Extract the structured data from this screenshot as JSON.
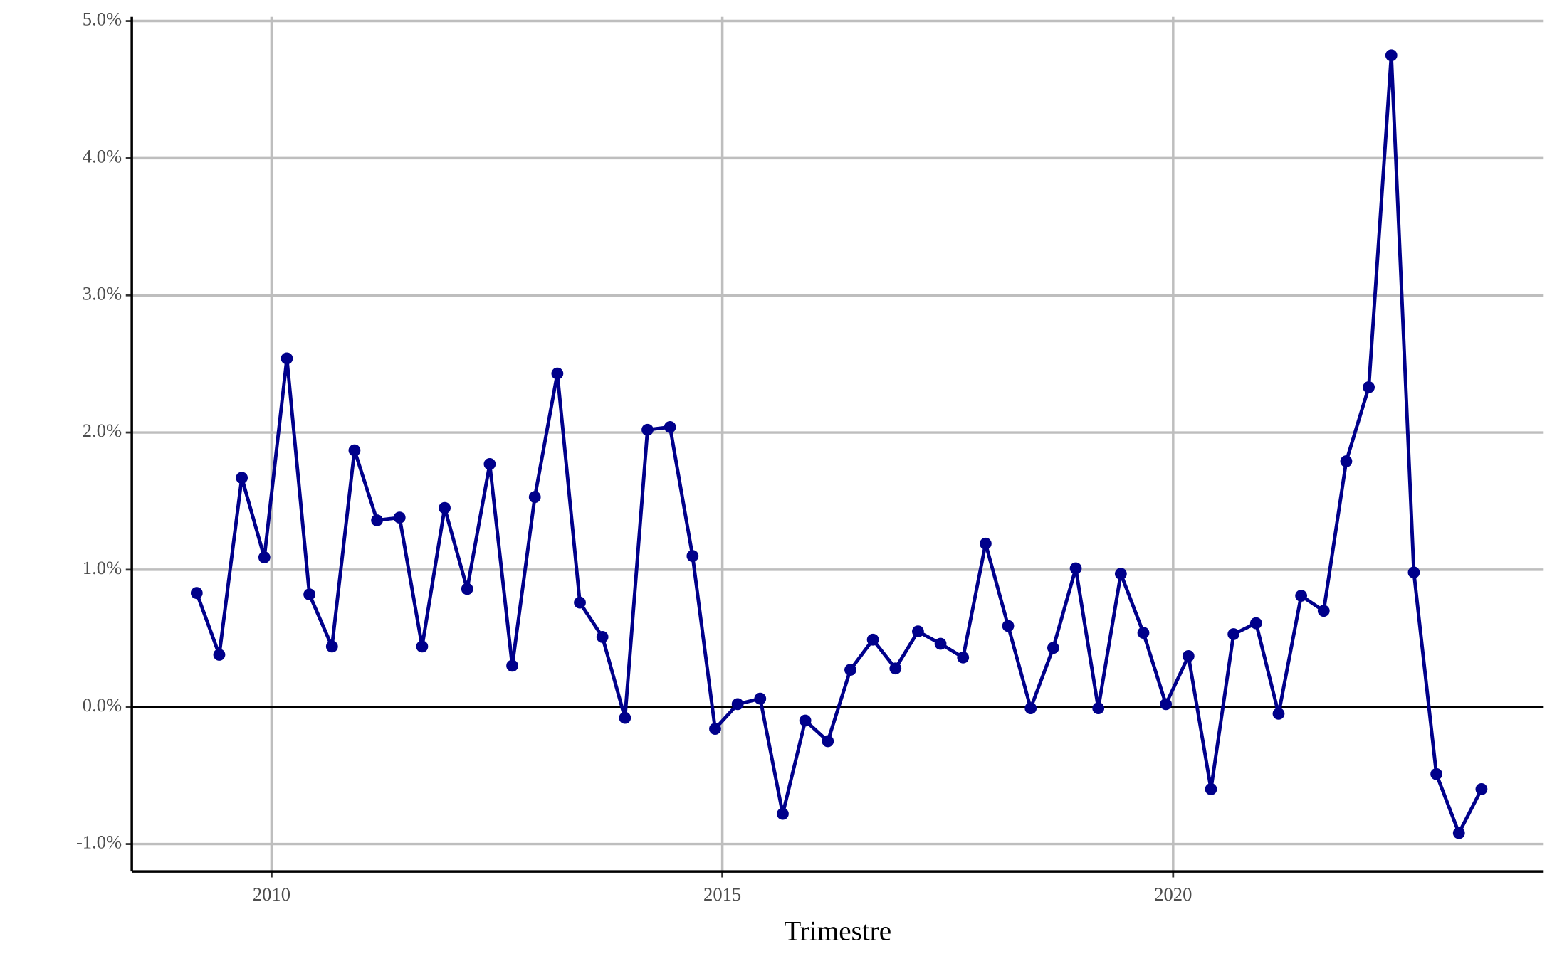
{
  "chart_data": {
    "type": "line",
    "x_label": "Trimestre",
    "x": [
      2009.17,
      2009.42,
      2009.67,
      2009.92,
      2010.17,
      2010.42,
      2010.67,
      2010.92,
      2011.17,
      2011.42,
      2011.67,
      2011.92,
      2012.17,
      2012.42,
      2012.67,
      2012.92,
      2013.17,
      2013.42,
      2013.67,
      2013.92,
      2014.17,
      2014.42,
      2014.67,
      2014.92,
      2015.17,
      2015.42,
      2015.67,
      2015.92,
      2016.17,
      2016.42,
      2016.67,
      2016.92,
      2017.17,
      2017.42,
      2017.67,
      2017.92,
      2018.17,
      2018.42,
      2018.67,
      2018.92,
      2019.17,
      2019.42,
      2019.67,
      2019.92,
      2020.17,
      2020.42,
      2020.67,
      2020.92,
      2021.17,
      2021.42,
      2021.67,
      2021.92,
      2022.17,
      2022.42,
      2022.67,
      2022.92,
      2023.17,
      2023.42
    ],
    "series": [
      {
        "color": "#00008b",
        "values": [
          0.83,
          0.38,
          1.67,
          1.09,
          2.54,
          0.82,
          0.44,
          1.87,
          1.36,
          1.38,
          0.44,
          1.45,
          0.86,
          1.77,
          0.3,
          1.53,
          2.43,
          0.76,
          0.51,
          -0.08,
          2.02,
          2.04,
          1.1,
          -0.16,
          0.02,
          0.06,
          -0.78,
          -0.1,
          -0.25,
          0.27,
          0.49,
          0.28,
          0.55,
          0.46,
          0.36,
          1.19,
          0.59,
          -0.01,
          0.43,
          1.01,
          -0.01,
          0.97,
          0.54,
          0.02,
          0.37,
          -0.6,
          0.53,
          0.61,
          -0.05,
          0.81,
          0.7,
          1.79,
          2.33,
          4.75,
          0.98,
          -0.49,
          -0.92,
          -0.6
        ]
      }
    ],
    "xlim": [
      2008.45,
      2024.11
    ],
    "ylim": [
      -1.2,
      5.03
    ],
    "xticks": [
      2010,
      2015,
      2020
    ],
    "yticks": [
      {
        "value": -1,
        "label": "-1.0%"
      },
      {
        "value": 0,
        "label": "0.0%"
      },
      {
        "value": 1,
        "label": "1.0%"
      },
      {
        "value": 2,
        "label": "2.0%"
      },
      {
        "value": 3,
        "label": "3.0%"
      },
      {
        "value": 4,
        "label": "4.0%"
      },
      {
        "value": 5,
        "label": "5.0%"
      }
    ],
    "hline": 0,
    "grid": true
  }
}
